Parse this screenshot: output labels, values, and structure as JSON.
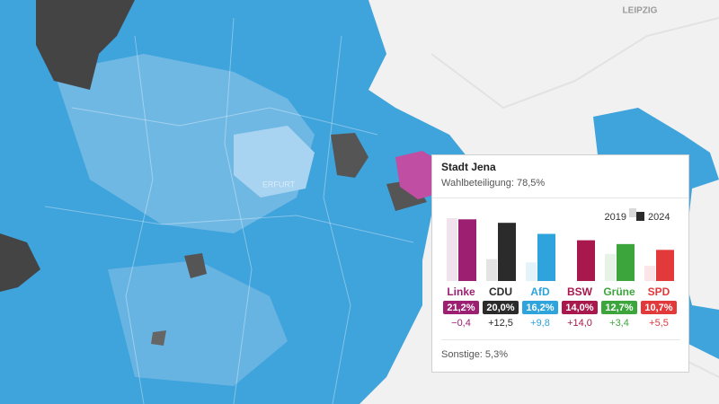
{
  "map": {
    "city_labels": [
      "LEIPZIG",
      "ERFURT"
    ]
  },
  "tooltip": {
    "title": "Stadt Jena",
    "subtitle": "Wahlbeteiligung: 78,5%",
    "footer": "Sonstige: 5,3%"
  },
  "chart_data": {
    "type": "bar",
    "categories": [
      "Linke",
      "CDU",
      "AfD",
      "BSW",
      "Grüne",
      "SPD"
    ],
    "colors": [
      "#9c1f72",
      "#2b2b2b",
      "#2ea3dc",
      "#a8184c",
      "#3ca63c",
      "#e2393b"
    ],
    "series": [
      {
        "name": "2019",
        "color": "#d9d9d9",
        "values": [
          21.6,
          7.5,
          6.4,
          0,
          9.3,
          5.2
        ]
      },
      {
        "name": "2024",
        "color": "#2b2b2b",
        "values": [
          21.2,
          20.0,
          16.2,
          14.0,
          12.7,
          10.7
        ],
        "value_labels": [
          "21,2%",
          "20,0%",
          "16,2%",
          "14,0%",
          "12,7%",
          "10,7%"
        ]
      }
    ],
    "change_labels": [
      "−0,4",
      "+12,5",
      "+9,8",
      "+14,0",
      "+3,4",
      "+5,5"
    ]
  }
}
